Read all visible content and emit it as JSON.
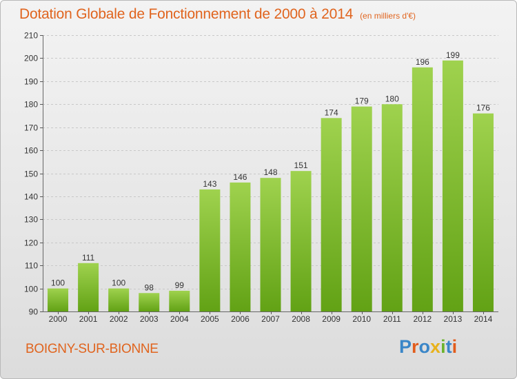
{
  "header": {
    "title": "Dotation Globale de Fonctionnement de 2000 à 2014",
    "unit": "(en milliers d'€)"
  },
  "footer": {
    "commune": "BOIGNY-SUR-BIONNE",
    "logo_text": "Proxiti"
  },
  "colors": {
    "accent": "#e0641e",
    "bar_top": "#9fd24e",
    "bar_bottom": "#62a215",
    "grid": "#c8c8c8",
    "logo_letters": [
      "#3a86c8",
      "#e25c1c",
      "#3a86c8",
      "#e8b21c",
      "#6cb32c",
      "#3a86c8",
      "#e25c1c"
    ]
  },
  "chart_data": {
    "type": "bar",
    "categories": [
      "2000",
      "2001",
      "2002",
      "2003",
      "2004",
      "2005",
      "2006",
      "2007",
      "2008",
      "2009",
      "2010",
      "2011",
      "2012",
      "2013",
      "2014"
    ],
    "values": [
      100,
      111,
      100,
      98,
      99,
      143,
      146,
      148,
      151,
      174,
      179,
      180,
      196,
      199,
      176
    ],
    "title": "Dotation Globale de Fonctionnement de 2000 à 2014",
    "xlabel": "",
    "ylabel": "",
    "ylim": [
      90,
      210
    ],
    "yticks": [
      90,
      100,
      110,
      120,
      130,
      140,
      150,
      160,
      170,
      180,
      190,
      200,
      210
    ],
    "grid": true,
    "data_labels": true
  }
}
